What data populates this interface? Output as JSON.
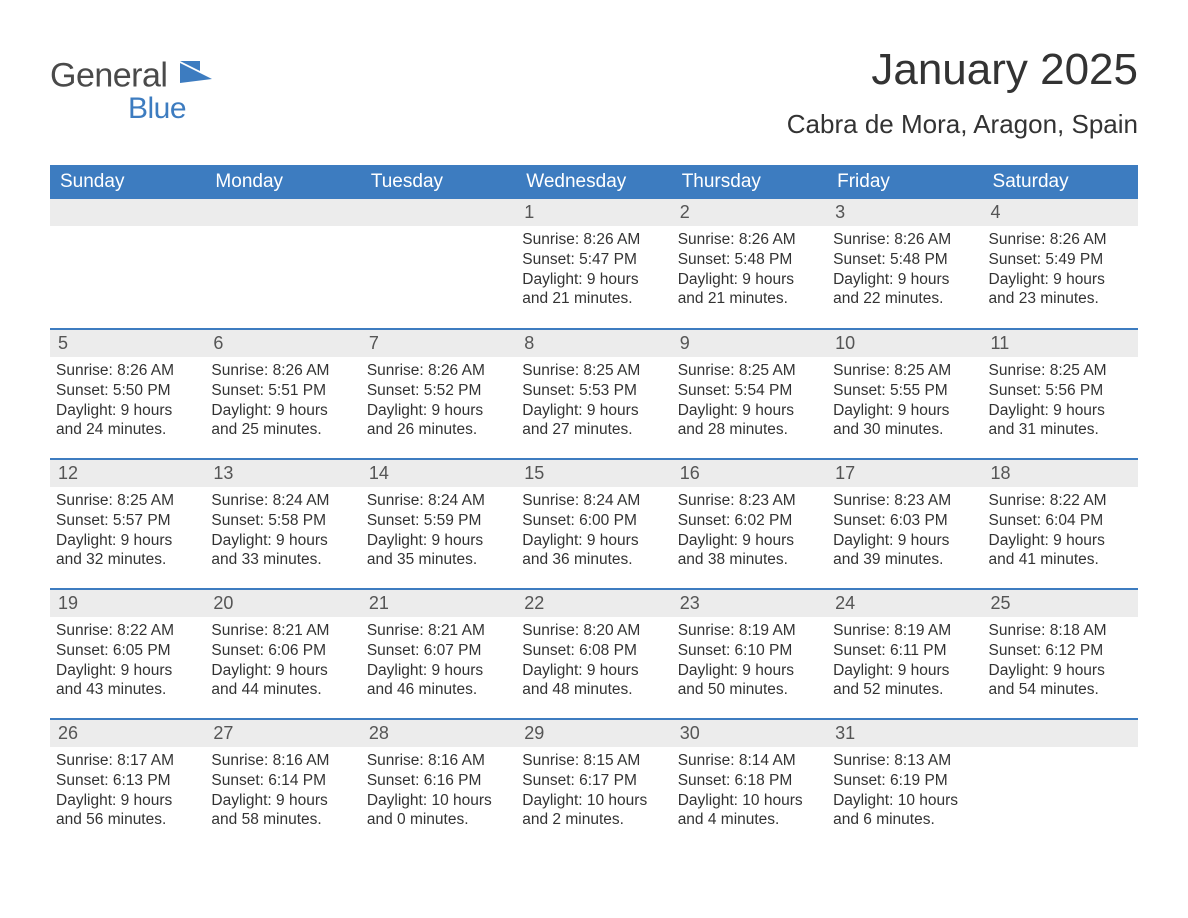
{
  "logo": {
    "text_general": "General",
    "text_blue": "Blue",
    "shape_color": "#3d7cc0",
    "general_color": "#4a4a4a"
  },
  "title": {
    "month": "January 2025",
    "location": "Cabra de Mora, Aragon, Spain"
  },
  "styling": {
    "header_bg": "#3d7cc0",
    "header_text": "#ffffff",
    "daynum_bg": "#ececec",
    "daynum_text": "#555555",
    "body_text": "#333333",
    "row_divider": "#3d7cc0",
    "page_bg": "#ffffff",
    "font_family": "Arial",
    "month_fontsize": 44,
    "location_fontsize": 26,
    "header_fontsize": 19,
    "daynum_fontsize": 18,
    "cell_fontsize": 15.5
  },
  "calendar": {
    "columns": [
      "Sunday",
      "Monday",
      "Tuesday",
      "Wednesday",
      "Thursday",
      "Friday",
      "Saturday"
    ],
    "weeks": [
      [
        {
          "num": "",
          "lines": []
        },
        {
          "num": "",
          "lines": []
        },
        {
          "num": "",
          "lines": []
        },
        {
          "num": "1",
          "lines": [
            "Sunrise: 8:26 AM",
            "Sunset: 5:47 PM",
            "Daylight: 9 hours",
            "and 21 minutes."
          ]
        },
        {
          "num": "2",
          "lines": [
            "Sunrise: 8:26 AM",
            "Sunset: 5:48 PM",
            "Daylight: 9 hours",
            "and 21 minutes."
          ]
        },
        {
          "num": "3",
          "lines": [
            "Sunrise: 8:26 AM",
            "Sunset: 5:48 PM",
            "Daylight: 9 hours",
            "and 22 minutes."
          ]
        },
        {
          "num": "4",
          "lines": [
            "Sunrise: 8:26 AM",
            "Sunset: 5:49 PM",
            "Daylight: 9 hours",
            "and 23 minutes."
          ]
        }
      ],
      [
        {
          "num": "5",
          "lines": [
            "Sunrise: 8:26 AM",
            "Sunset: 5:50 PM",
            "Daylight: 9 hours",
            "and 24 minutes."
          ]
        },
        {
          "num": "6",
          "lines": [
            "Sunrise: 8:26 AM",
            "Sunset: 5:51 PM",
            "Daylight: 9 hours",
            "and 25 minutes."
          ]
        },
        {
          "num": "7",
          "lines": [
            "Sunrise: 8:26 AM",
            "Sunset: 5:52 PM",
            "Daylight: 9 hours",
            "and 26 minutes."
          ]
        },
        {
          "num": "8",
          "lines": [
            "Sunrise: 8:25 AM",
            "Sunset: 5:53 PM",
            "Daylight: 9 hours",
            "and 27 minutes."
          ]
        },
        {
          "num": "9",
          "lines": [
            "Sunrise: 8:25 AM",
            "Sunset: 5:54 PM",
            "Daylight: 9 hours",
            "and 28 minutes."
          ]
        },
        {
          "num": "10",
          "lines": [
            "Sunrise: 8:25 AM",
            "Sunset: 5:55 PM",
            "Daylight: 9 hours",
            "and 30 minutes."
          ]
        },
        {
          "num": "11",
          "lines": [
            "Sunrise: 8:25 AM",
            "Sunset: 5:56 PM",
            "Daylight: 9 hours",
            "and 31 minutes."
          ]
        }
      ],
      [
        {
          "num": "12",
          "lines": [
            "Sunrise: 8:25 AM",
            "Sunset: 5:57 PM",
            "Daylight: 9 hours",
            "and 32 minutes."
          ]
        },
        {
          "num": "13",
          "lines": [
            "Sunrise: 8:24 AM",
            "Sunset: 5:58 PM",
            "Daylight: 9 hours",
            "and 33 minutes."
          ]
        },
        {
          "num": "14",
          "lines": [
            "Sunrise: 8:24 AM",
            "Sunset: 5:59 PM",
            "Daylight: 9 hours",
            "and 35 minutes."
          ]
        },
        {
          "num": "15",
          "lines": [
            "Sunrise: 8:24 AM",
            "Sunset: 6:00 PM",
            "Daylight: 9 hours",
            "and 36 minutes."
          ]
        },
        {
          "num": "16",
          "lines": [
            "Sunrise: 8:23 AM",
            "Sunset: 6:02 PM",
            "Daylight: 9 hours",
            "and 38 minutes."
          ]
        },
        {
          "num": "17",
          "lines": [
            "Sunrise: 8:23 AM",
            "Sunset: 6:03 PM",
            "Daylight: 9 hours",
            "and 39 minutes."
          ]
        },
        {
          "num": "18",
          "lines": [
            "Sunrise: 8:22 AM",
            "Sunset: 6:04 PM",
            "Daylight: 9 hours",
            "and 41 minutes."
          ]
        }
      ],
      [
        {
          "num": "19",
          "lines": [
            "Sunrise: 8:22 AM",
            "Sunset: 6:05 PM",
            "Daylight: 9 hours",
            "and 43 minutes."
          ]
        },
        {
          "num": "20",
          "lines": [
            "Sunrise: 8:21 AM",
            "Sunset: 6:06 PM",
            "Daylight: 9 hours",
            "and 44 minutes."
          ]
        },
        {
          "num": "21",
          "lines": [
            "Sunrise: 8:21 AM",
            "Sunset: 6:07 PM",
            "Daylight: 9 hours",
            "and 46 minutes."
          ]
        },
        {
          "num": "22",
          "lines": [
            "Sunrise: 8:20 AM",
            "Sunset: 6:08 PM",
            "Daylight: 9 hours",
            "and 48 minutes."
          ]
        },
        {
          "num": "23",
          "lines": [
            "Sunrise: 8:19 AM",
            "Sunset: 6:10 PM",
            "Daylight: 9 hours",
            "and 50 minutes."
          ]
        },
        {
          "num": "24",
          "lines": [
            "Sunrise: 8:19 AM",
            "Sunset: 6:11 PM",
            "Daylight: 9 hours",
            "and 52 minutes."
          ]
        },
        {
          "num": "25",
          "lines": [
            "Sunrise: 8:18 AM",
            "Sunset: 6:12 PM",
            "Daylight: 9 hours",
            "and 54 minutes."
          ]
        }
      ],
      [
        {
          "num": "26",
          "lines": [
            "Sunrise: 8:17 AM",
            "Sunset: 6:13 PM",
            "Daylight: 9 hours",
            "and 56 minutes."
          ]
        },
        {
          "num": "27",
          "lines": [
            "Sunrise: 8:16 AM",
            "Sunset: 6:14 PM",
            "Daylight: 9 hours",
            "and 58 minutes."
          ]
        },
        {
          "num": "28",
          "lines": [
            "Sunrise: 8:16 AM",
            "Sunset: 6:16 PM",
            "Daylight: 10 hours",
            "and 0 minutes."
          ]
        },
        {
          "num": "29",
          "lines": [
            "Sunrise: 8:15 AM",
            "Sunset: 6:17 PM",
            "Daylight: 10 hours",
            "and 2 minutes."
          ]
        },
        {
          "num": "30",
          "lines": [
            "Sunrise: 8:14 AM",
            "Sunset: 6:18 PM",
            "Daylight: 10 hours",
            "and 4 minutes."
          ]
        },
        {
          "num": "31",
          "lines": [
            "Sunrise: 8:13 AM",
            "Sunset: 6:19 PM",
            "Daylight: 10 hours",
            "and 6 minutes."
          ]
        },
        {
          "num": "",
          "lines": []
        }
      ]
    ]
  }
}
